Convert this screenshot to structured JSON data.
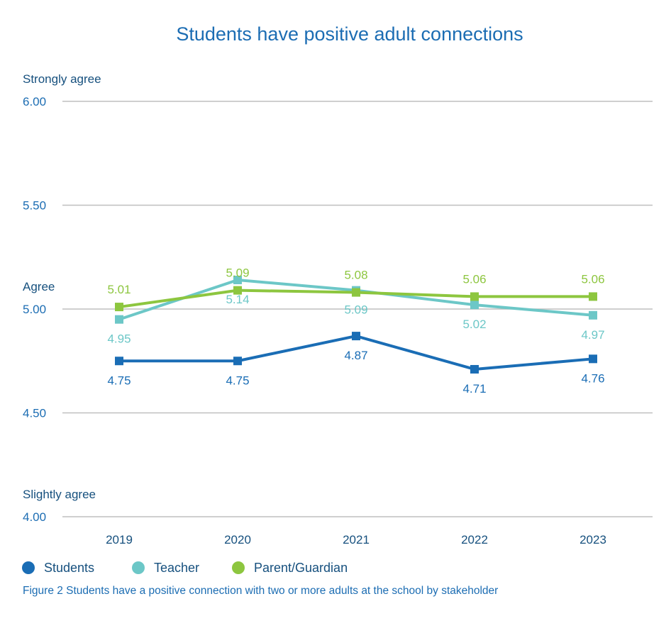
{
  "chart_data": {
    "type": "line",
    "title": "Students have positive adult connections",
    "scale_labels": [
      {
        "text": "Strongly agree",
        "value": 6.0
      },
      {
        "text": "Agree",
        "value": 5.0
      },
      {
        "text": "Slightly agree",
        "value": 4.0
      }
    ],
    "y_ticks": [
      {
        "value": 6.0,
        "label": "6.00"
      },
      {
        "value": 5.5,
        "label": "5.50"
      },
      {
        "value": 5.0,
        "label": "5.00"
      },
      {
        "value": 4.5,
        "label": "4.50"
      },
      {
        "value": 4.0,
        "label": "4.00"
      }
    ],
    "ylim": [
      4.0,
      6.0
    ],
    "grid": true,
    "categories": [
      "2019",
      "2020",
      "2021",
      "2022",
      "2023"
    ],
    "series": [
      {
        "name": "Students",
        "color": "#1a6db5",
        "values": [
          4.75,
          4.75,
          4.87,
          4.71,
          4.76
        ],
        "labels": [
          "4.75",
          "4.75",
          "4.87",
          "4.71",
          "4.76"
        ],
        "label_side": [
          "below",
          "below",
          "below",
          "below",
          "below"
        ]
      },
      {
        "name": "Teacher",
        "color": "#6cc7c7",
        "values": [
          4.95,
          5.14,
          5.09,
          5.02,
          4.97
        ],
        "labels": [
          "4.95",
          "5.14",
          "5.09",
          "5.02",
          "4.97"
        ],
        "label_side": [
          "below",
          "below",
          "below",
          "below",
          "below"
        ]
      },
      {
        "name": "Parent/Guardian",
        "color": "#8dc63f",
        "values": [
          5.01,
          5.09,
          5.08,
          5.06,
          5.06
        ],
        "labels": [
          "5.01",
          "5.09",
          "5.08",
          "5.06",
          "5.06"
        ],
        "label_side": [
          "above",
          "above",
          "above",
          "above",
          "above"
        ]
      }
    ],
    "legend_position": "bottom-left",
    "caption": "Figure 2 Students have a positive connection with two or more adults at the school by stakeholder"
  }
}
